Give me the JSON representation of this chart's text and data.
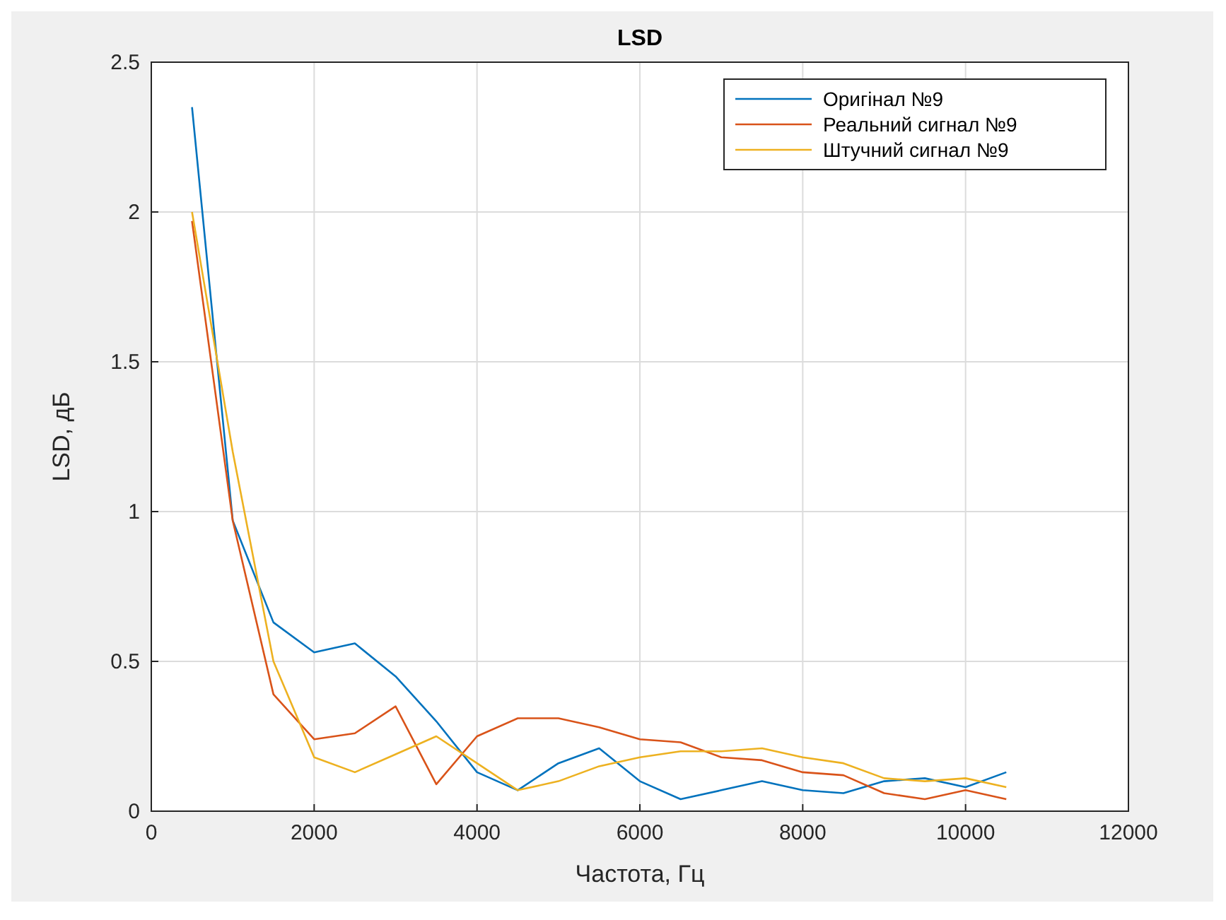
{
  "chart_data": {
    "type": "line",
    "title": "LSD",
    "xlabel": "Частота, Гц",
    "ylabel": "LSD, дБ",
    "x": [
      500,
      1000,
      1500,
      2000,
      2500,
      3000,
      3500,
      4000,
      4500,
      5000,
      5500,
      6000,
      6500,
      7000,
      7500,
      8000,
      8500,
      9000,
      9500,
      10000,
      10500
    ],
    "series": [
      {
        "name": "Оригінал №9",
        "color": "#0072bd",
        "values": [
          2.35,
          0.97,
          0.63,
          0.53,
          0.56,
          0.45,
          0.3,
          0.13,
          0.07,
          0.16,
          0.21,
          0.1,
          0.04,
          0.07,
          0.1,
          0.07,
          0.06,
          0.1,
          0.11,
          0.08,
          0.13
        ]
      },
      {
        "name": "Реальний сигнал №9",
        "color": "#d95319",
        "values": [
          1.97,
          0.97,
          0.39,
          0.24,
          0.26,
          0.35,
          0.09,
          0.25,
          0.31,
          0.31,
          0.28,
          0.24,
          0.23,
          0.18,
          0.17,
          0.13,
          0.12,
          0.06,
          0.04,
          0.07,
          0.04
        ]
      },
      {
        "name": "Штучний сигнал №9",
        "color": "#edb120",
        "values": [
          2.0,
          1.2,
          0.5,
          0.18,
          0.13,
          0.19,
          0.25,
          0.16,
          0.07,
          0.1,
          0.15,
          0.18,
          0.2,
          0.2,
          0.21,
          0.18,
          0.16,
          0.11,
          0.1,
          0.11,
          0.08
        ]
      }
    ],
    "xlim": [
      0,
      12000
    ],
    "xticks": [
      0,
      2000,
      4000,
      6000,
      8000,
      10000,
      12000
    ],
    "ylim": [
      0,
      2.5
    ],
    "yticks": [
      0,
      0.5,
      1,
      1.5,
      2,
      2.5
    ],
    "grid": true,
    "legend": "top right",
    "line_style": "solid",
    "marker": "none"
  }
}
